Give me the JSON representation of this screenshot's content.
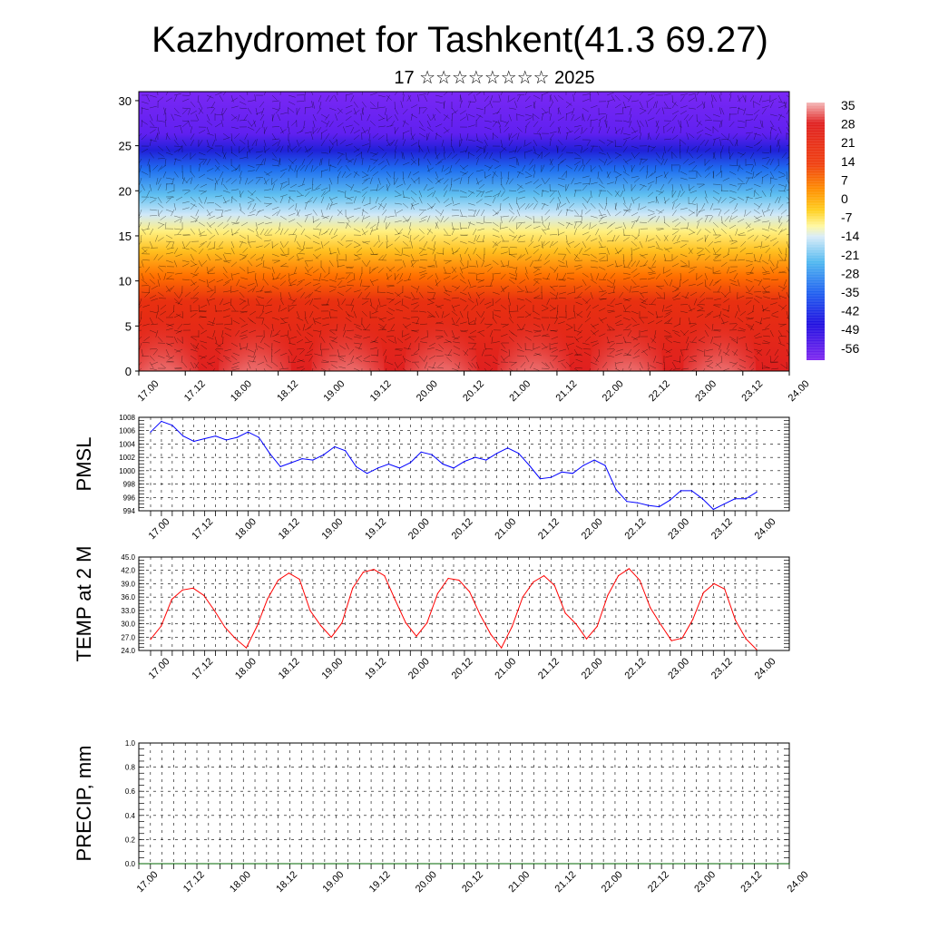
{
  "title": "Kazhydromet for Tashkent(41.3 69.27)",
  "subtitle": "17 ☆☆☆☆☆☆☆☆ 2025",
  "colors": {
    "pmsl_line": "#0000ff",
    "temp_line": "#ff0000",
    "precip_line": "#006400"
  },
  "chart_data": [
    {
      "type": "heatmap",
      "name": "vertical-cross-section",
      "x_tick_labels": [
        "17.00",
        "17.12",
        "18.00",
        "18.12",
        "19.00",
        "19.12",
        "20.00",
        "20.12",
        "21.00",
        "21.12",
        "22.00",
        "22.12",
        "23.00",
        "23.12",
        "24.00"
      ],
      "y_ticks": [
        0,
        5,
        10,
        15,
        20,
        25,
        30
      ],
      "ylim": [
        0,
        31
      ],
      "colorbar_labels": [
        "35",
        "28",
        "21",
        "14",
        "7",
        "0",
        "-7",
        "-14",
        "-21",
        "-28",
        "-35",
        "-42",
        "-49",
        "-56"
      ]
    },
    {
      "type": "line",
      "name": "pmsl",
      "ylabel": "PMSL",
      "x_tick_labels": [
        "17.00",
        "17.12",
        "18.00",
        "18.12",
        "19.00",
        "19.12",
        "20.00",
        "20.12",
        "21.00",
        "21.12",
        "22.00",
        "22.12",
        "23.00",
        "23.12",
        "24.00"
      ],
      "y_tick_labels": [
        "1008",
        "1006",
        "1004",
        "1002",
        "1000",
        "998",
        "996",
        "994"
      ],
      "ylim": [
        994,
        1008
      ],
      "values": [
        1005.8,
        1007.4,
        1006.8,
        1005.2,
        1004.4,
        1004.8,
        1005.2,
        1004.6,
        1005.0,
        1005.8,
        1005.0,
        1002.6,
        1000.6,
        1001.2,
        1001.8,
        1001.6,
        1002.4,
        1003.6,
        1003.0,
        1000.6,
        999.6,
        1000.4,
        1001.0,
        1000.4,
        1001.2,
        1002.8,
        1002.4,
        1001.0,
        1000.4,
        1001.4,
        1002.0,
        1001.6,
        1002.6,
        1003.4,
        1002.6,
        1000.8,
        998.8,
        999.0,
        999.8,
        999.6,
        1000.8,
        1001.6,
        1000.8,
        997.2,
        995.4,
        995.2,
        994.8,
        994.6,
        995.6,
        997.0,
        997.0,
        995.8,
        994.2,
        995.0,
        995.8,
        995.8,
        996.8
      ]
    },
    {
      "type": "line",
      "name": "temperature",
      "ylabel": "TEMP at 2 M",
      "x_tick_labels": [
        "17.00",
        "17.12",
        "18.00",
        "18.12",
        "19.00",
        "19.12",
        "20.00",
        "20.12",
        "21.00",
        "21.12",
        "22.00",
        "22.12",
        "23.00",
        "23.12",
        "24.00"
      ],
      "y_tick_labels": [
        "45.0",
        "42.0",
        "39.0",
        "36.0",
        "33.0",
        "30.0",
        "27.0",
        "24.0"
      ],
      "ylim": [
        24,
        45
      ],
      "values": [
        26.5,
        29.5,
        35.5,
        37.6,
        38.0,
        36.4,
        33.0,
        29.2,
        26.6,
        24.6,
        29.4,
        35.6,
        39.8,
        41.4,
        40.0,
        33.0,
        29.6,
        27.0,
        30.2,
        38.0,
        41.6,
        42.2,
        40.8,
        35.4,
        30.2,
        27.2,
        30.2,
        36.8,
        40.2,
        39.8,
        37.2,
        32.0,
        27.6,
        24.6,
        29.4,
        36.0,
        39.4,
        40.8,
        38.6,
        32.4,
        30.0,
        26.6,
        29.4,
        36.4,
        40.8,
        42.4,
        39.8,
        33.6,
        29.8,
        26.2,
        26.8,
        31.0,
        37.0,
        39.0,
        37.8,
        30.8,
        26.6,
        24.2
      ]
    },
    {
      "type": "line",
      "name": "precipitation",
      "ylabel": "PRECIP, mm",
      "x_tick_labels": [
        "17.00",
        "17.12",
        "18.00",
        "18.12",
        "19.00",
        "19.12",
        "20.00",
        "20.12",
        "21.00",
        "21.12",
        "22.00",
        "22.12",
        "23.00",
        "23.12",
        "24.00"
      ],
      "y_tick_labels": [
        "1.0",
        "0.8",
        "0.6",
        "0.4",
        "0.2",
        "0.0"
      ],
      "ylim": [
        0,
        1
      ],
      "values": [
        0,
        0,
        0,
        0,
        0,
        0,
        0,
        0,
        0,
        0,
        0,
        0,
        0,
        0,
        0,
        0,
        0,
        0,
        0,
        0,
        0,
        0,
        0,
        0,
        0,
        0,
        0,
        0,
        0,
        0,
        0,
        0,
        0,
        0,
        0,
        0,
        0,
        0,
        0,
        0,
        0,
        0,
        0,
        0,
        0,
        0,
        0,
        0,
        0,
        0,
        0,
        0,
        0,
        0,
        0,
        0,
        0
      ]
    }
  ]
}
